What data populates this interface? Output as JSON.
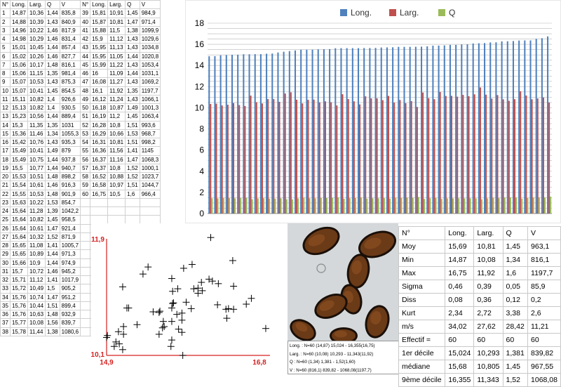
{
  "left_table": {
    "headers": [
      "N°",
      "Long.",
      "Larg.",
      "Q",
      "V",
      "N°",
      "Long.",
      "Larg.",
      "Q",
      "V"
    ],
    "rows": [
      [
        "1",
        "14,87",
        "10,36",
        "1,44",
        "835,8",
        "39",
        "15,81",
        "10,91",
        "1,45",
        "984,9"
      ],
      [
        "2",
        "14,88",
        "10,39",
        "1,43",
        "840,9",
        "40",
        "15,87",
        "10,81",
        "1,47",
        "971,4"
      ],
      [
        "3",
        "14,96",
        "10,22",
        "1,46",
        "817,9",
        "41",
        "15,88",
        "11,5",
        "1,38",
        "1099,9"
      ],
      [
        "4",
        "14,98",
        "10,29",
        "1,46",
        "831,4",
        "42",
        "15,9",
        "11,12",
        "1,43",
        "1029,6"
      ],
      [
        "5",
        "15,01",
        "10,45",
        "1,44",
        "857,4",
        "43",
        "15,95",
        "11,13",
        "1,43",
        "1034,8"
      ],
      [
        "6",
        "15,02",
        "10,26",
        "1,46",
        "827,7",
        "44",
        "15,95",
        "11,05",
        "1,44",
        "1020,8"
      ],
      [
        "7",
        "15,06",
        "10,17",
        "1,48",
        "816,1",
        "45",
        "15,99",
        "11,22",
        "1,43",
        "1053,4"
      ],
      [
        "8",
        "15,06",
        "11,15",
        "1,35",
        "981,4",
        "46",
        "16",
        "11,09",
        "1,44",
        "1031,1"
      ],
      [
        "9",
        "15,07",
        "10,53",
        "1,43",
        "875,3",
        "47",
        "16,08",
        "11,27",
        "1,43",
        "1069,2"
      ],
      [
        "10",
        "15,07",
        "10,41",
        "1,45",
        "854,5",
        "48",
        "16,1",
        "11,92",
        "1,35",
        "1197,7"
      ],
      [
        "11",
        "15,11",
        "10,82",
        "1,4",
        "926,6",
        "49",
        "16,12",
        "11,24",
        "1,43",
        "1066,1"
      ],
      [
        "12",
        "15,13",
        "10,82",
        "1,4",
        "930,5",
        "50",
        "16,18",
        "10,87",
        "1,49",
        "1001,3"
      ],
      [
        "13",
        "15,23",
        "10,56",
        "1,44",
        "889,4",
        "51",
        "16,19",
        "11,2",
        "1,45",
        "1063,4"
      ],
      [
        "14",
        "15,3",
        "11,35",
        "1,35",
        "1031",
        "52",
        "16,28",
        "10,8",
        "1,51",
        "993,6"
      ],
      [
        "15",
        "15,36",
        "11,46",
        "1,34",
        "1055,3",
        "53",
        "16,29",
        "10,66",
        "1,53",
        "968,7"
      ],
      [
        "16",
        "15,42",
        "10,76",
        "1,43",
        "935,3",
        "54",
        "16,31",
        "10,81",
        "1,51",
        "998,2"
      ],
      [
        "17",
        "15,49",
        "10,41",
        "1,49",
        "879",
        "55",
        "16,36",
        "11,56",
        "1,41",
        "1145"
      ],
      [
        "18",
        "15,49",
        "10,75",
        "1,44",
        "937,8",
        "56",
        "16,37",
        "11,16",
        "1,47",
        "1068,3"
      ],
      [
        "19",
        "15,5",
        "10,77",
        "1,44",
        "940,7",
        "57",
        "16,37",
        "10,8",
        "1,52",
        "1000,1"
      ],
      [
        "20",
        "15,53",
        "10,51",
        "1,48",
        "898,2",
        "58",
        "16,52",
        "10,88",
        "1,52",
        "1023,7"
      ],
      [
        "21",
        "15,54",
        "10,61",
        "1,46",
        "916,3",
        "59",
        "16,58",
        "10,97",
        "1,51",
        "1044,7"
      ],
      [
        "22",
        "15,55",
        "10,53",
        "1,48",
        "901,9",
        "60",
        "16,75",
        "10,5",
        "1,6",
        "966,4"
      ],
      [
        "23",
        "15,63",
        "10,22",
        "1,53",
        "854,7",
        "",
        "",
        "",
        "",
        ""
      ],
      [
        "24",
        "15,64",
        "11,28",
        "1,39",
        "1042,2",
        "",
        "",
        "",
        "",
        ""
      ],
      [
        "25",
        "15,64",
        "10,82",
        "1,45",
        "958,5",
        "",
        "",
        "",
        "",
        ""
      ],
      [
        "26",
        "15,64",
        "10,61",
        "1,47",
        "921,4",
        "",
        "",
        "",
        "",
        ""
      ],
      [
        "27",
        "15,64",
        "10,32",
        "1,52",
        "871,9",
        "",
        "",
        "",
        "",
        ""
      ],
      [
        "28",
        "15,65",
        "11,08",
        "1,41",
        "1005,7",
        "",
        "",
        "",
        "",
        ""
      ],
      [
        "29",
        "15,65",
        "10,89",
        "1,44",
        "971,3",
        "",
        "",
        "",
        "",
        ""
      ],
      [
        "30",
        "15,66",
        "10,9",
        "1,44",
        "974,9",
        "",
        "",
        "",
        "",
        ""
      ],
      [
        "31",
        "15,7",
        "10,72",
        "1,46",
        "945,2",
        "",
        "",
        "",
        "",
        ""
      ],
      [
        "32",
        "15,71",
        "11,12",
        "1,41",
        "1017,9",
        "",
        "",
        "",
        "",
        ""
      ],
      [
        "33",
        "15,72",
        "10,49",
        "1,5",
        "905,2",
        "",
        "",
        "",
        "",
        ""
      ],
      [
        "34",
        "15,76",
        "10,74",
        "1,47",
        "951,2",
        "",
        "",
        "",
        "",
        ""
      ],
      [
        "35",
        "15,76",
        "10,44",
        "1,51",
        "899,4",
        "",
        "",
        "",
        "",
        ""
      ],
      [
        "36",
        "15,76",
        "10,63",
        "1,48",
        "932,9",
        "",
        "",
        "",
        "",
        ""
      ],
      [
        "37",
        "15,77",
        "10,08",
        "1,56",
        "839,7",
        "",
        "",
        "",
        "",
        ""
      ],
      [
        "38",
        "15,78",
        "11,44",
        "1,38",
        "1080,6",
        "",
        "",
        "",
        "",
        ""
      ]
    ]
  },
  "chart_data": [
    {
      "type": "bar",
      "legend": [
        "Long.",
        "Larg.",
        "Q"
      ],
      "legend_position": "top",
      "ylim": [
        0,
        18
      ],
      "yticks": [
        "0",
        "2",
        "4",
        "6",
        "8",
        "10",
        "12",
        "14",
        "16",
        "18"
      ],
      "grid": true,
      "colors": [
        "#4f81bd",
        "#c0504d",
        "#9bbb59"
      ],
      "series": [
        {
          "name": "Long.",
          "values": [
            14.87,
            14.88,
            14.96,
            14.98,
            15.01,
            15.02,
            15.06,
            15.06,
            15.07,
            15.07,
            15.11,
            15.13,
            15.23,
            15.3,
            15.36,
            15.42,
            15.49,
            15.49,
            15.5,
            15.53,
            15.54,
            15.55,
            15.63,
            15.64,
            15.64,
            15.64,
            15.64,
            15.65,
            15.65,
            15.66,
            15.7,
            15.71,
            15.72,
            15.76,
            15.76,
            15.76,
            15.77,
            15.78,
            15.81,
            15.87,
            15.88,
            15.9,
            15.95,
            15.95,
            15.99,
            16,
            16.08,
            16.1,
            16.12,
            16.18,
            16.19,
            16.28,
            16.29,
            16.31,
            16.36,
            16.37,
            16.37,
            16.52,
            16.58,
            16.75
          ]
        },
        {
          "name": "Larg.",
          "values": [
            10.36,
            10.39,
            10.22,
            10.29,
            10.45,
            10.26,
            10.17,
            11.15,
            10.53,
            10.41,
            10.82,
            10.82,
            10.56,
            11.35,
            11.46,
            10.76,
            10.41,
            10.75,
            10.77,
            10.51,
            10.61,
            10.53,
            10.22,
            11.28,
            10.82,
            10.61,
            10.32,
            11.08,
            10.89,
            10.9,
            10.72,
            11.12,
            10.49,
            10.74,
            10.44,
            10.63,
            10.08,
            11.44,
            10.91,
            10.81,
            11.5,
            11.12,
            11.13,
            11.05,
            11.22,
            11.09,
            11.27,
            11.92,
            11.24,
            10.87,
            11.2,
            10.8,
            10.66,
            10.81,
            11.56,
            11.16,
            10.8,
            10.88,
            10.97,
            10.5
          ]
        },
        {
          "name": "Q",
          "values": [
            1.44,
            1.43,
            1.46,
            1.46,
            1.44,
            1.46,
            1.48,
            1.35,
            1.43,
            1.45,
            1.4,
            1.4,
            1.44,
            1.35,
            1.34,
            1.43,
            1.49,
            1.44,
            1.44,
            1.48,
            1.46,
            1.48,
            1.53,
            1.39,
            1.45,
            1.47,
            1.52,
            1.41,
            1.44,
            1.44,
            1.46,
            1.41,
            1.5,
            1.47,
            1.51,
            1.48,
            1.56,
            1.38,
            1.45,
            1.47,
            1.38,
            1.43,
            1.43,
            1.44,
            1.43,
            1.44,
            1.43,
            1.35,
            1.43,
            1.49,
            1.45,
            1.51,
            1.53,
            1.51,
            1.41,
            1.47,
            1.52,
            1.52,
            1.51,
            1.6
          ]
        }
      ]
    },
    {
      "type": "scatter",
      "xlim": [
        14.87,
        16.8
      ],
      "ylim": [
        10.08,
        11.9
      ],
      "x_min_label": "14,9",
      "x_max_label": "16,8",
      "y_min_label": "10,1",
      "y_max_label": "11,9",
      "marker": "+",
      "x": [
        14.87,
        14.88,
        14.96,
        14.98,
        15.01,
        15.02,
        15.06,
        15.06,
        15.07,
        15.07,
        15.11,
        15.13,
        15.23,
        15.3,
        15.36,
        15.42,
        15.49,
        15.49,
        15.5,
        15.53,
        15.54,
        15.55,
        15.63,
        15.64,
        15.64,
        15.64,
        15.64,
        15.65,
        15.65,
        15.66,
        15.7,
        15.71,
        15.72,
        15.76,
        15.76,
        15.76,
        15.77,
        15.78,
        15.81,
        15.87,
        15.88,
        15.9,
        15.95,
        15.95,
        15.99,
        16,
        16.08,
        16.1,
        16.12,
        16.18,
        16.19,
        16.28,
        16.29,
        16.31,
        16.36,
        16.37,
        16.37,
        16.52,
        16.58,
        16.75
      ],
      "y": [
        10.36,
        10.39,
        10.22,
        10.29,
        10.45,
        10.26,
        10.17,
        11.15,
        10.53,
        10.41,
        10.82,
        10.82,
        10.56,
        11.35,
        11.46,
        10.76,
        10.41,
        10.75,
        10.77,
        10.51,
        10.61,
        10.53,
        10.22,
        11.28,
        10.82,
        10.61,
        10.32,
        11.08,
        10.89,
        10.9,
        10.72,
        11.12,
        10.49,
        10.74,
        10.44,
        10.63,
        10.08,
        11.44,
        10.91,
        10.81,
        11.5,
        11.12,
        11.13,
        11.05,
        11.22,
        11.09,
        11.27,
        11.92,
        11.24,
        10.87,
        11.2,
        10.8,
        10.66,
        10.81,
        11.56,
        11.16,
        10.8,
        10.88,
        10.97,
        10.5
      ]
    }
  ],
  "summary_lines": [
    "Long. : N=60   (14,87) 15,024 - 16,355(16,75)",
    "Larg. : N=60   (10,08) 10,293 - 11,343(11,92)",
    "Q : N=60   (1,34) 1,381 - 1,52(1,60)",
    "V : N=60   (816,1) 839,82 - 1068,08(1197,7)"
  ],
  "stats_table": {
    "headers": [
      "N°",
      "Long.",
      "Larg.",
      "Q",
      "V"
    ],
    "rows": [
      [
        "Moy",
        "15,69",
        "10,81",
        "1,45",
        "963,1"
      ],
      [
        "Min",
        "14,87",
        "10,08",
        "1,34",
        "816,1"
      ],
      [
        "Max",
        "16,75",
        "11,92",
        "1,6",
        "1197,7"
      ],
      [
        "Sigma",
        "0,46",
        "0,39",
        "0,05",
        "85,9"
      ],
      [
        "Diss",
        "0,08",
        "0,36",
        "0,12",
        "0,2"
      ],
      [
        "Kurt",
        "2,34",
        "2,72",
        "3,38",
        "2,6"
      ],
      [
        "m/s",
        "34,02",
        "27,62",
        "28,42",
        "11,21"
      ],
      [
        "Effectif =",
        "60",
        "60",
        "60",
        "60"
      ],
      [
        "1er décile",
        "15,024",
        "10,293",
        "1,381",
        "839,82"
      ],
      [
        "médiane",
        "15,68",
        "10,805",
        "1,45",
        "967,55"
      ],
      [
        "9ème décile",
        "16,355",
        "11,343",
        "1,52",
        "1068,08"
      ]
    ]
  },
  "spores": [
    {
      "cx": 48,
      "cy": 25,
      "rx": 28,
      "ry": 18,
      "rot": -25
    },
    {
      "cx": 128,
      "cy": 30,
      "rx": 28,
      "ry": 18,
      "rot": -20
    },
    {
      "cx": 101,
      "cy": 68,
      "rx": 16,
      "ry": 25,
      "rot": 10
    },
    {
      "cx": 91,
      "cy": 108,
      "rx": 15,
      "ry": 22,
      "rot": -15
    },
    {
      "cx": 62,
      "cy": 118,
      "rx": 25,
      "ry": 16,
      "rot": -25
    },
    {
      "cx": 128,
      "cy": 140,
      "rx": 17,
      "ry": 24,
      "rot": 15
    },
    {
      "cx": 22,
      "cy": 152,
      "rx": 20,
      "ry": 14,
      "rot": 30
    },
    {
      "cx": 80,
      "cy": 160,
      "rx": 20,
      "ry": 12,
      "rot": 0
    }
  ]
}
